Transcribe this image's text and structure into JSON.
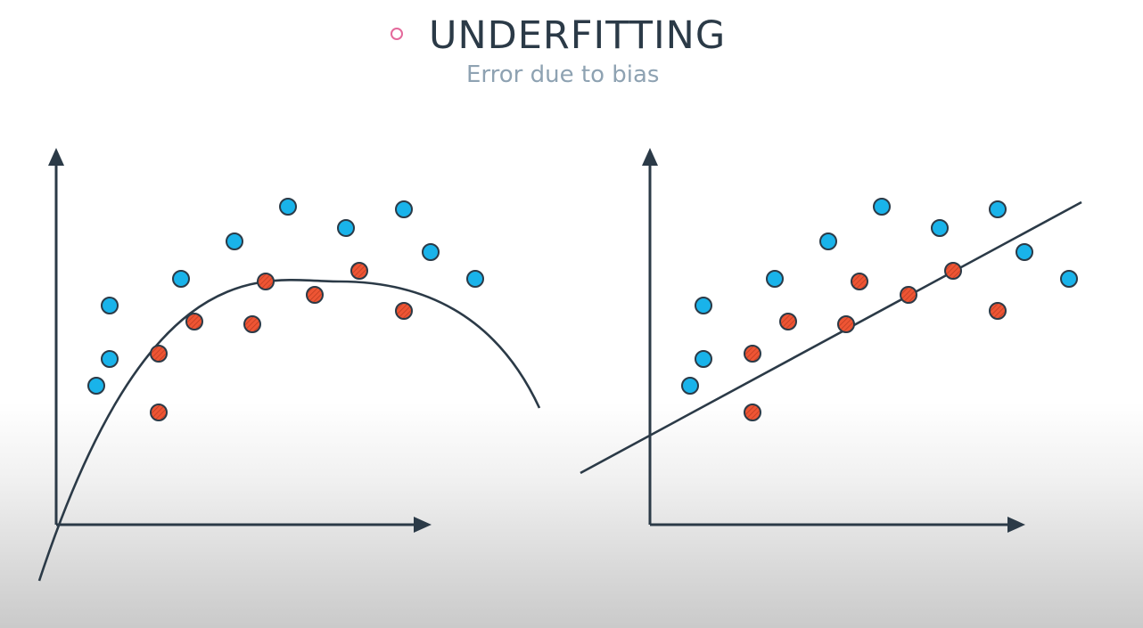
{
  "header": {
    "title": "UNDERFITTING",
    "subtitle": "Error due to bias"
  },
  "colors": {
    "axis": "#2b3a47",
    "blue_point": "#19b3ea",
    "red_point": "#ee5534",
    "bullet": "#e4699b",
    "title": "#2b3a47",
    "subtitle": "#8ea2b2"
  },
  "plots": [
    {
      "name": "curved-fit",
      "fit": "curve",
      "blue_points": [
        [
          0.45,
          2.6
        ],
        [
          0.6,
          3.1
        ],
        [
          0.6,
          4.1
        ],
        [
          1.4,
          4.6
        ],
        [
          2.0,
          5.3
        ],
        [
          2.6,
          5.95
        ],
        [
          3.25,
          5.55
        ],
        [
          3.9,
          5.9
        ],
        [
          4.2,
          5.1
        ],
        [
          4.7,
          4.6
        ]
      ],
      "red_points": [
        [
          1.15,
          2.1
        ],
        [
          1.15,
          3.2
        ],
        [
          1.55,
          3.8
        ],
        [
          2.2,
          3.75
        ],
        [
          2.35,
          4.55
        ],
        [
          2.9,
          4.3
        ],
        [
          3.4,
          4.75
        ],
        [
          3.9,
          4.0
        ]
      ]
    },
    {
      "name": "linear-fit",
      "fit": "line",
      "blue_points": [
        [
          0.45,
          2.6
        ],
        [
          0.6,
          3.1
        ],
        [
          0.6,
          4.1
        ],
        [
          1.4,
          4.6
        ],
        [
          2.0,
          5.3
        ],
        [
          2.6,
          5.95
        ],
        [
          3.25,
          5.55
        ],
        [
          3.9,
          5.9
        ],
        [
          4.2,
          5.1
        ],
        [
          4.7,
          4.6
        ]
      ],
      "red_points": [
        [
          1.15,
          2.1
        ],
        [
          1.15,
          3.2
        ],
        [
          1.55,
          3.8
        ],
        [
          2.2,
          3.75
        ],
        [
          2.35,
          4.55
        ],
        [
          2.9,
          4.3
        ],
        [
          3.4,
          4.75
        ],
        [
          3.9,
          4.0
        ]
      ]
    }
  ]
}
